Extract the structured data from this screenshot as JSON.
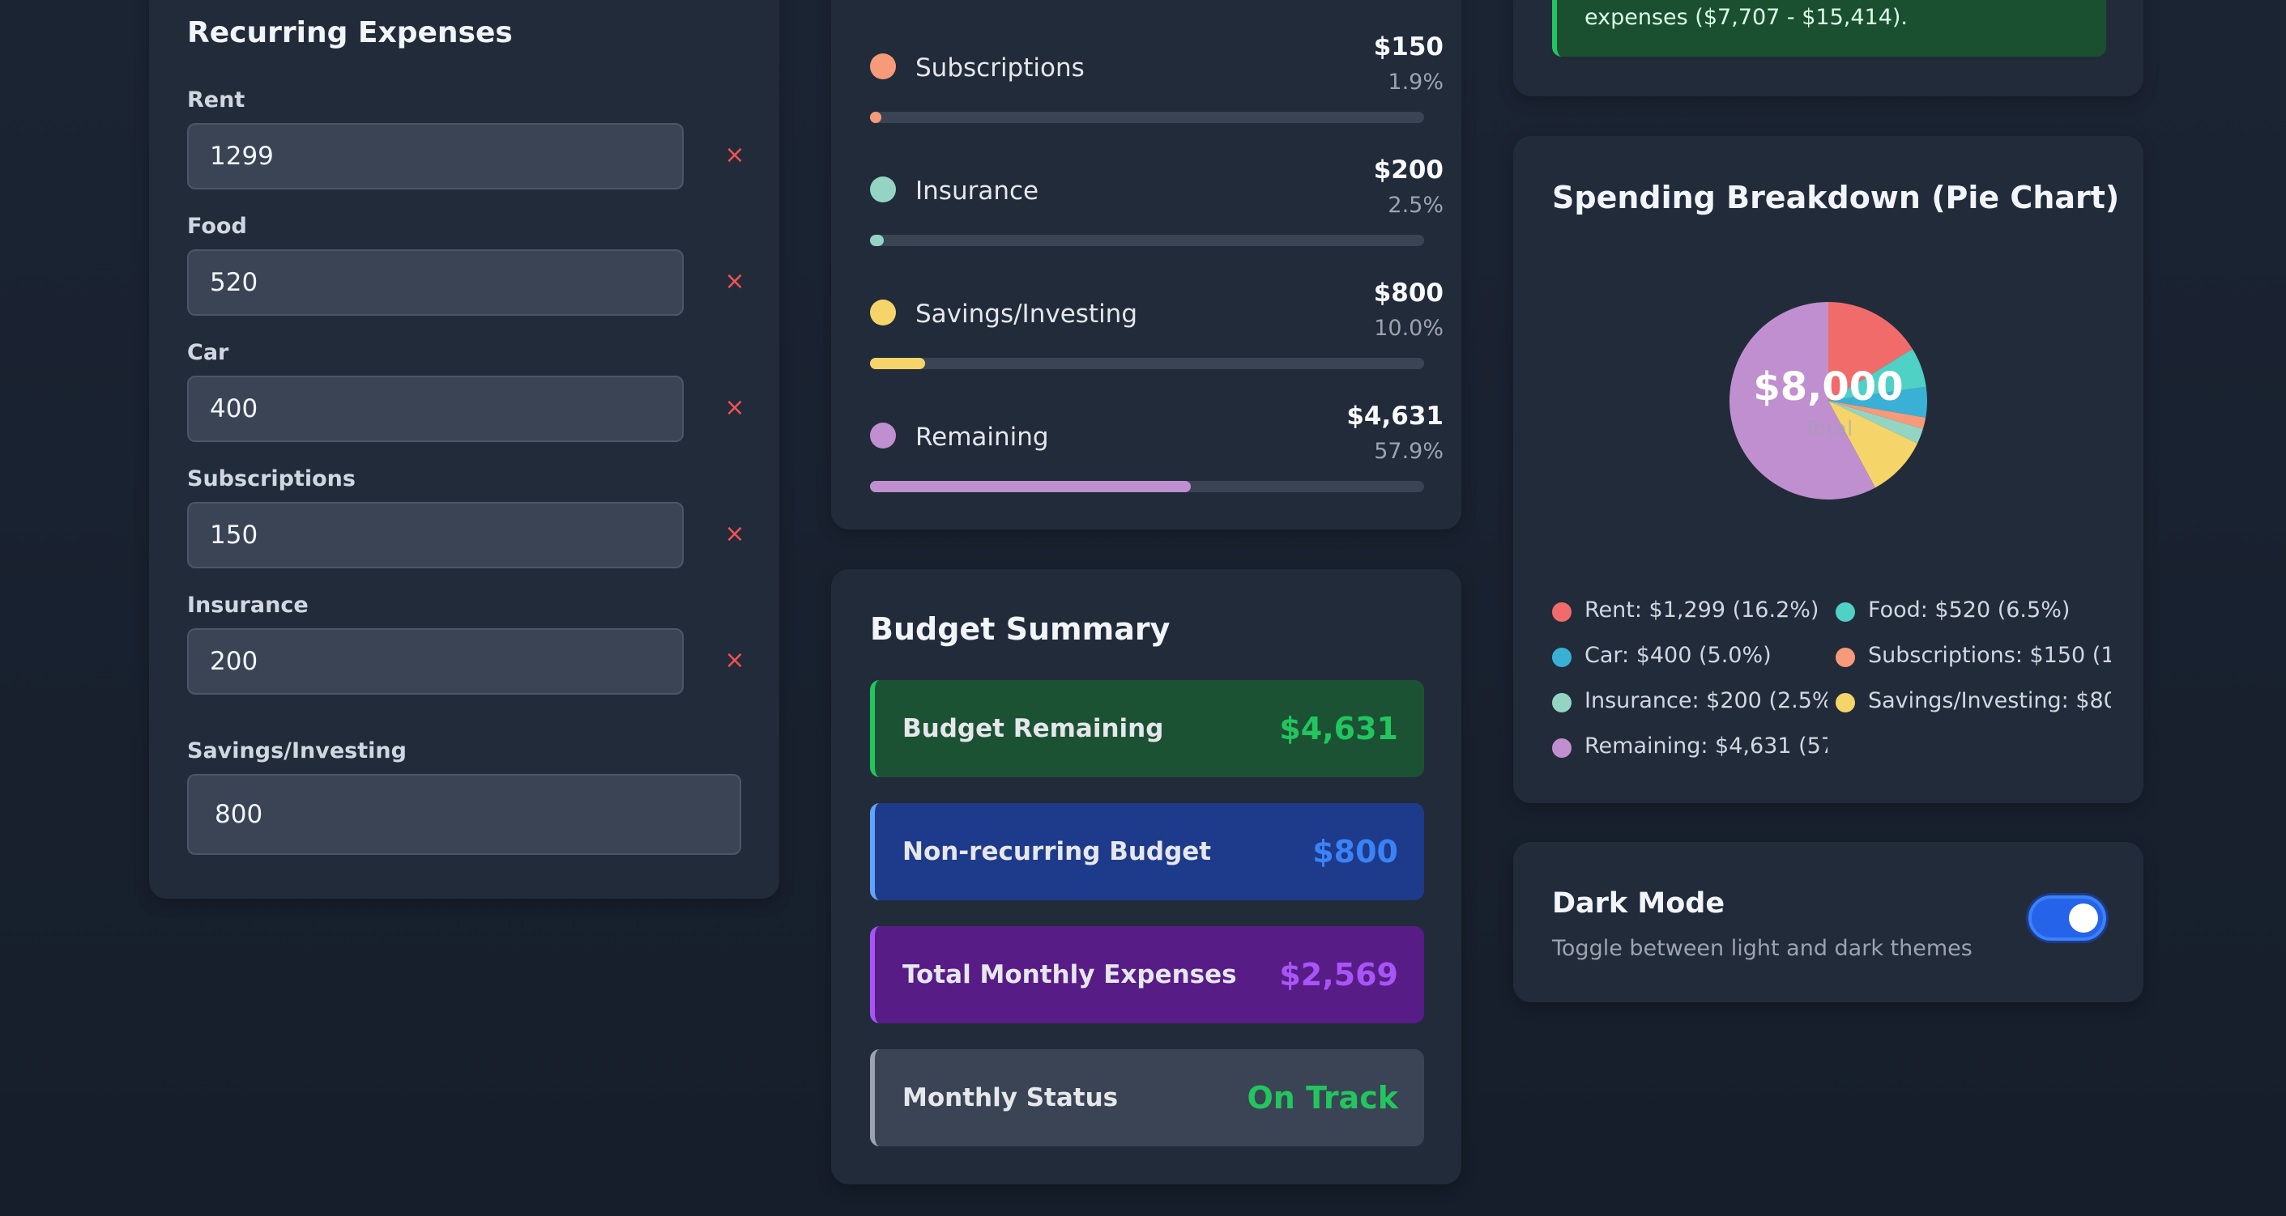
{
  "recurring": {
    "title": "Recurring Expenses",
    "items": [
      {
        "label": "Rent",
        "value": "1299"
      },
      {
        "label": "Food",
        "value": "520"
      },
      {
        "label": "Car",
        "value": "400"
      },
      {
        "label": "Subscriptions",
        "value": "150"
      },
      {
        "label": "Insurance",
        "value": "200"
      }
    ],
    "remove_label": "×",
    "savings": {
      "label": "Savings/Investing",
      "value": "800"
    }
  },
  "categories": [
    {
      "name": "Subscriptions",
      "amount": "$150",
      "percent": "1.9%",
      "fraction": 0.019,
      "color": "#f79a7a"
    },
    {
      "name": "Insurance",
      "amount": "$200",
      "percent": "2.5%",
      "fraction": 0.025,
      "color": "#93d5c2"
    },
    {
      "name": "Savings/Investing",
      "amount": "$800",
      "percent": "10.0%",
      "fraction": 0.1,
      "color": "#f5d56a"
    },
    {
      "name": "Remaining",
      "amount": "$4,631",
      "percent": "57.9%",
      "fraction": 0.579,
      "color": "#c08fd0"
    }
  ],
  "summary": {
    "title": "Budget Summary",
    "items": [
      {
        "label": "Budget Remaining",
        "value": "$4,631",
        "bg": "#1b5234",
        "border": "#22c55e",
        "color": "#22c55e"
      },
      {
        "label": "Non-recurring Budget",
        "value": "$800",
        "bg": "#1e3a8a",
        "border": "#60a5fa",
        "color": "#3b82f6"
      },
      {
        "label": "Total Monthly Expenses",
        "value": "$2,569",
        "bg": "#581c87",
        "border": "#a855f7",
        "color": "#a855f7"
      },
      {
        "label": "Monthly Status",
        "value": "On Track",
        "bg": "#3a4455",
        "border": "#9ca3af",
        "color": "#22c55e"
      }
    ]
  },
  "info": {
    "text": "expenses ($7,707 - $15,414)."
  },
  "pie": {
    "title": "Spending Breakdown (Pie Chart)",
    "center_value": "$8,000",
    "center_sub": "Total"
  },
  "chart_data": {
    "type": "pie",
    "title": "Spending Breakdown (Pie Chart)",
    "total": 8000,
    "slices": [
      {
        "name": "Rent",
        "value": 1299,
        "percent": 16.2,
        "color": "#f26b6b"
      },
      {
        "name": "Food",
        "value": 520,
        "percent": 6.5,
        "color": "#4fd1c5"
      },
      {
        "name": "Car",
        "value": 400,
        "percent": 5.0,
        "color": "#3bb0d6"
      },
      {
        "name": "Subscriptions",
        "value": 150,
        "percent": 1.9,
        "color": "#f79a7a"
      },
      {
        "name": "Insurance",
        "value": 200,
        "percent": 2.5,
        "color": "#93d5c2"
      },
      {
        "name": "Savings/Investing",
        "value": 800,
        "percent": 10.0,
        "color": "#f5d56a"
      },
      {
        "name": "Remaining",
        "value": 4631,
        "percent": 57.9,
        "color": "#c08fd0"
      }
    ],
    "legend": [
      "Rent: $1,299 (16.2%)",
      "Food: $520 (6.5%)",
      "Car: $400 (5.0%)",
      "Subscriptions: $150 (1...",
      "Insurance: $200 (2.5%)",
      "Savings/Investing: $80...",
      "Remaining: $4,631 (57..."
    ]
  },
  "dark_mode": {
    "title": "Dark Mode",
    "description": "Toggle between light and dark themes",
    "enabled": true
  }
}
